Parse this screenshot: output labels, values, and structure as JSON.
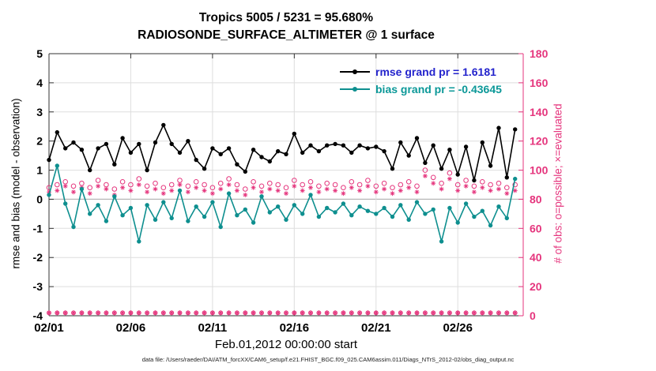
{
  "title": "Tropics 5005 / 5231 = 95.680%",
  "subtitle": "RADIOSONDE_SURFACE_ALTIMETER @ 1 surface",
  "legend": {
    "rmse_label": "rmse grand pr = 1.6181",
    "bias_label": "bias grand pr = -0.43645"
  },
  "axis": {
    "xlabel": "Feb.01,2012 00:00:00 start",
    "ylabel_left": "rmse and bias (model - observation)",
    "ylabel_right": "# of obs: o=possible; ×=evaluated"
  },
  "caption": "data file: /Users/raeder/DAI/ATM_forcXX/CAM6_setup/f.e21.FHIST_BGC.f09_025.CAM6assim.011/Diags_NTrS_2012-02/obs_diag_output.nc",
  "colors": {
    "rmse": "#000000",
    "bias": "#0e8f8f",
    "obs": "#e5357d",
    "rmse_text": "#2323cc",
    "bias_text": "#0b9898",
    "grid": "#dedede",
    "zero_line": "#b7b7b7",
    "axis_box": "#333333"
  },
  "chart_data": {
    "type": "line",
    "title": "Tropics 5005 / 5231 = 95.680%",
    "subtitle": "RADIOSONDE_SURFACE_ALTIMETER @ 1 surface",
    "xlabel": "Feb.01,2012 00:00:00 start",
    "ylabel_left": "rmse and bias (model - observation)",
    "ylabel_right": "# of obs: o=possible; ×=evaluated",
    "xlim": [
      0,
      29
    ],
    "ylim_left": [
      -4,
      5
    ],
    "ylim_right": [
      0,
      180
    ],
    "x_start_day": 0,
    "x_step_days": 0.5,
    "x_ticks": [
      {
        "day": 0,
        "label": "02/01"
      },
      {
        "day": 5,
        "label": "02/06"
      },
      {
        "day": 10,
        "label": "02/11"
      },
      {
        "day": 15,
        "label": "02/16"
      },
      {
        "day": 20,
        "label": "02/21"
      },
      {
        "day": 25,
        "label": "02/26"
      }
    ],
    "y_ticks_left": [
      -4,
      -3,
      -2,
      -1,
      0,
      1,
      2,
      3,
      4,
      5
    ],
    "y_ticks_right": [
      0,
      20,
      40,
      60,
      80,
      100,
      120,
      140,
      160,
      180
    ],
    "stats": {
      "possible_total": 5231,
      "evaluated_total": 5005,
      "percent_evaluated": "95.680%",
      "rmse_grand_prior": 1.6181,
      "bias_grand_prior": -0.43645
    },
    "series": [
      {
        "name": "possible obs count",
        "axis": "right",
        "color_key": "obs",
        "marker": "open-circle",
        "line": false,
        "values": [
          88,
          90,
          92,
          89,
          91,
          88,
          93,
          90,
          87,
          92,
          90,
          94,
          89,
          91,
          88,
          90,
          93,
          89,
          92,
          90,
          88,
          91,
          94,
          90,
          87,
          92,
          89,
          91,
          90,
          88,
          93,
          90,
          92,
          89,
          91,
          90,
          88,
          92,
          90,
          93,
          89,
          91,
          88,
          90,
          92,
          89,
          100,
          95,
          91,
          98,
          90,
          93,
          89,
          92,
          90,
          91,
          88,
          90
        ]
      },
      {
        "name": "evaluated obs count",
        "axis": "right",
        "color_key": "obs",
        "marker": "asterisk",
        "line": false,
        "values": [
          85,
          86,
          89,
          85,
          88,
          84,
          89,
          87,
          83,
          88,
          86,
          90,
          85,
          87,
          84,
          86,
          90,
          85,
          88,
          86,
          84,
          87,
          90,
          86,
          83,
          88,
          85,
          87,
          86,
          84,
          89,
          86,
          88,
          85,
          87,
          86,
          84,
          88,
          86,
          89,
          85,
          87,
          84,
          86,
          88,
          85,
          96,
          91,
          87,
          94,
          86,
          89,
          85,
          88,
          86,
          87,
          84,
          86
        ]
      },
      {
        "name": "bottom row obs markers",
        "axis": "right",
        "color_key": "obs",
        "marker": "circle-asterisk",
        "line": false,
        "constant": 2
      },
      {
        "name": "bias prior",
        "axis": "left",
        "color_key": "bias",
        "marker": "filled-circle",
        "line": true,
        "values": [
          0.15,
          1.15,
          -0.15,
          -0.95,
          0.35,
          -0.5,
          -0.2,
          -0.75,
          0.1,
          -0.55,
          -0.3,
          -1.45,
          -0.2,
          -0.7,
          -0.1,
          -0.65,
          0.3,
          -0.75,
          -0.25,
          -0.6,
          -0.1,
          -0.95,
          0.2,
          -0.55,
          -0.35,
          -0.8,
          0.1,
          -0.45,
          -0.25,
          -0.7,
          -0.2,
          -0.5,
          0.15,
          -0.6,
          -0.3,
          -0.45,
          -0.15,
          -0.55,
          -0.25,
          -0.4,
          -0.5,
          -0.3,
          -0.6,
          -0.2,
          -0.7,
          -0.1,
          -0.5,
          -0.35,
          -1.45,
          -0.3,
          -0.8,
          -0.15,
          -0.6,
          -0.4,
          -0.9,
          -0.25,
          -0.65,
          0.7
        ]
      },
      {
        "name": "rmse prior",
        "axis": "left",
        "color_key": "rmse",
        "marker": "filled-circle",
        "line": true,
        "values": [
          1.35,
          2.3,
          1.75,
          1.95,
          1.7,
          1.0,
          1.75,
          1.9,
          1.2,
          2.1,
          1.6,
          1.9,
          1.0,
          1.95,
          2.55,
          1.9,
          1.6,
          2.0,
          1.35,
          1.05,
          1.75,
          1.55,
          1.75,
          1.2,
          0.95,
          1.7,
          1.45,
          1.3,
          1.65,
          1.55,
          2.25,
          1.6,
          1.85,
          1.65,
          1.85,
          1.9,
          1.85,
          1.6,
          1.85,
          1.75,
          1.8,
          1.65,
          1.05,
          1.95,
          1.5,
          2.1,
          1.25,
          1.85,
          1.05,
          1.7,
          0.85,
          1.8,
          0.65,
          1.95,
          1.15,
          2.45,
          0.75,
          2.4
        ]
      }
    ]
  }
}
